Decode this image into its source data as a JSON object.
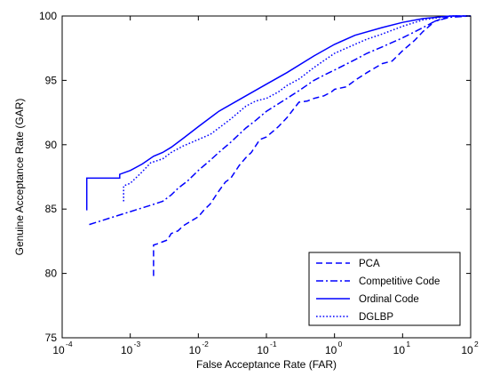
{
  "chart_data": {
    "type": "line",
    "title": "",
    "xlabel": "False Acceptance Rate (FAR)",
    "ylabel": "Genuine Acceptance Rate (GAR)",
    "xscale": "log",
    "xlim": [
      0.0001,
      100
    ],
    "ylim": [
      75,
      100
    ],
    "x_ticks": [
      {
        "base": "10",
        "exp": "-4",
        "value": 0.0001
      },
      {
        "base": "10",
        "exp": "-3",
        "value": 0.001
      },
      {
        "base": "10",
        "exp": "-2",
        "value": 0.01
      },
      {
        "base": "10",
        "exp": "-1",
        "value": 0.1
      },
      {
        "base": "10",
        "exp": "0",
        "value": 1
      },
      {
        "base": "10",
        "exp": "1",
        "value": 10
      },
      {
        "base": "10",
        "exp": "2",
        "value": 100
      }
    ],
    "y_ticks": [
      "75",
      "80",
      "85",
      "90",
      "95",
      "100"
    ],
    "y_tick_values": [
      75,
      80,
      85,
      90,
      95,
      100
    ],
    "grid": false,
    "legend_position": "bottom-right",
    "line_color": "#0000ff",
    "series": [
      {
        "name": "PCA",
        "dash": "dashed",
        "x": [
          0.0022,
          0.0022,
          0.0025,
          0.0035,
          0.004,
          0.005,
          0.006,
          0.008,
          0.01,
          0.012,
          0.015,
          0.02,
          0.025,
          0.03,
          0.04,
          0.05,
          0.06,
          0.08,
          0.1,
          0.15,
          0.2,
          0.3,
          0.4,
          0.5,
          0.7,
          0.9,
          1.0,
          1.5,
          2.0,
          3.0,
          5.0,
          7.0,
          10.0,
          15.0,
          20.0,
          30.0,
          50.0,
          100.0
        ],
        "y": [
          79.8,
          82.2,
          82.3,
          82.6,
          83.1,
          83.3,
          83.7,
          84.1,
          84.4,
          84.9,
          85.4,
          86.4,
          87.1,
          87.4,
          88.4,
          89.0,
          89.4,
          90.4,
          90.6,
          91.4,
          92.1,
          93.3,
          93.4,
          93.6,
          93.8,
          94.1,
          94.3,
          94.5,
          95.0,
          95.6,
          96.3,
          96.5,
          97.3,
          98.1,
          98.8,
          99.6,
          100.0,
          100.0
        ]
      },
      {
        "name": "Competitive Code",
        "dash": "dash-dot",
        "x": [
          0.00025,
          0.0005,
          0.001,
          0.002,
          0.003,
          0.004,
          0.005,
          0.007,
          0.01,
          0.015,
          0.02,
          0.03,
          0.05,
          0.07,
          0.1,
          0.2,
          0.3,
          0.5,
          0.7,
          1.0,
          2.0,
          3.0,
          5.0,
          10.0,
          20.0,
          30.0,
          50.0,
          100.0
        ],
        "y": [
          83.8,
          84.3,
          84.8,
          85.3,
          85.6,
          86.1,
          86.6,
          87.2,
          88.0,
          88.8,
          89.4,
          90.2,
          91.3,
          91.9,
          92.6,
          93.6,
          94.2,
          95.0,
          95.4,
          95.8,
          96.6,
          97.1,
          97.6,
          98.3,
          99.1,
          99.6,
          99.9,
          100.0
        ]
      },
      {
        "name": "Ordinal Code",
        "dash": "solid",
        "x": [
          0.00023,
          0.00023,
          0.0007,
          0.0007,
          0.001,
          0.0015,
          0.0022,
          0.003,
          0.004,
          0.006,
          0.01,
          0.02,
          0.05,
          0.1,
          0.2,
          0.5,
          1.0,
          2.0,
          5.0,
          10.0,
          20.0,
          50.0,
          100.0
        ],
        "y": [
          84.9,
          87.4,
          87.4,
          87.7,
          88.0,
          88.5,
          89.1,
          89.4,
          89.8,
          90.5,
          91.4,
          92.6,
          93.8,
          94.7,
          95.6,
          96.9,
          97.8,
          98.5,
          99.1,
          99.5,
          99.8,
          100.0,
          100.0
        ]
      },
      {
        "name": "DGLBP",
        "dash": "dotted",
        "x": [
          0.0008,
          0.0008,
          0.001,
          0.0015,
          0.002,
          0.003,
          0.004,
          0.006,
          0.01,
          0.015,
          0.02,
          0.03,
          0.05,
          0.07,
          0.1,
          0.15,
          0.2,
          0.3,
          0.5,
          1.0,
          2.0,
          3.0,
          5.0,
          10.0,
          20.0,
          50.0,
          100.0
        ],
        "y": [
          85.6,
          86.8,
          87.0,
          87.9,
          88.6,
          88.9,
          89.4,
          89.9,
          90.4,
          90.8,
          91.3,
          92.0,
          93.0,
          93.4,
          93.6,
          94.1,
          94.6,
          95.1,
          96.0,
          97.1,
          97.8,
          98.2,
          98.6,
          99.2,
          99.7,
          100.0,
          100.0
        ]
      }
    ]
  }
}
